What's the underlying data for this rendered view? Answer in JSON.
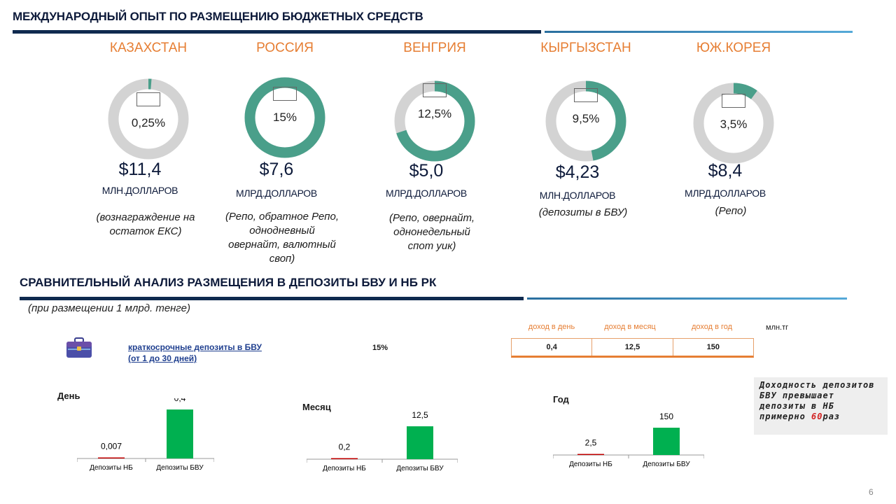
{
  "header": {
    "title": "МЕЖДУНАРОДНЫЙ ОПЫТ ПО РАЗМЕЩЕНИЮ БЮДЖЕТНЫХ СРЕДСТВ"
  },
  "countries": [
    {
      "name": "КАЗАХСТАН",
      "percent_label": "0,25%",
      "share": 0.0025,
      "amount": "$11,4",
      "unit": "МЛН.ДОЛЛАРОВ",
      "note_lines": [
        "(вознаграждение на",
        "остаток ЕКС)"
      ],
      "flag": "kz-flag-icon"
    },
    {
      "name": "РОССИЯ",
      "percent_label": "15%",
      "share": 1.0,
      "amount": "$7,6",
      "unit": "МЛРД.ДОЛЛАРОВ",
      "note_lines": [
        "(Репо, обратное Репо,",
        "однодневный",
        "овернайт, валютный",
        "своп)"
      ],
      "flag": "ru-flag-icon"
    },
    {
      "name": "ВЕНГРИЯ",
      "percent_label": "12,5%",
      "share": 0.7,
      "amount": "$5,0",
      "unit": "МЛРД.ДОЛЛАРОВ",
      "note_lines": [
        "(Репо, овернайт,",
        "однонедельный",
        "спот уик)"
      ],
      "flag": "hu-flag-icon"
    },
    {
      "name": "КЫРГЫЗСТАН",
      "percent_label": "9,5%",
      "share": 0.47,
      "amount": "$4,23",
      "unit": "МЛН.ДОЛЛАРОВ",
      "note_lines": [
        "(депозиты в БВУ)"
      ],
      "flag": "kg-flag-icon"
    },
    {
      "name": "ЮЖ.КОРЕЯ",
      "percent_label": "3,5%",
      "share": 0.1,
      "amount": "$8,4",
      "unit": "МЛРД.ДОЛЛАРОВ",
      "note_lines": [
        "(Репо)"
      ],
      "flag": "kr-flag-icon"
    }
  ],
  "analysis": {
    "title": "СРАВНИТЕЛЬНЫЙ АНАЛИЗ  РАЗМЕЩЕНИЯ В ДЕПОЗИТЫ БВУ И НБ РК",
    "subtitle": "(при размещении 1 млрд. тенге)",
    "deposit_link_line1": "краткосрочные депозиты в БВУ",
    "deposit_link_line2": "(от 1 до 30 дней)",
    "rate": "15%",
    "income_headers": [
      "доход в день",
      "доход в месяц",
      "доход в год"
    ],
    "income_values": [
      "0,4",
      "12,5",
      "150"
    ],
    "unit": "млн.тг",
    "callout_text": "Доходность депозитов БВУ превышает депозиты в НБ примерно",
    "callout_number": "60",
    "callout_suffix": "раз"
  },
  "colors": {
    "donut_fill": "#4a9f8a",
    "donut_track": "#d3d3d3",
    "bar_green": "#00b050",
    "bar_red": "#c00000",
    "accent_orange": "#e67e33"
  },
  "chart_data": [
    {
      "type": "bar",
      "title": "День",
      "categories": [
        "Депозиты НБ",
        "Депозиты БВУ"
      ],
      "values": [
        0.007,
        0.4
      ],
      "labels": [
        "0,007",
        "0,4"
      ]
    },
    {
      "type": "bar",
      "title": "Месяц",
      "categories": [
        "Депозиты НБ",
        "Депозиты БВУ"
      ],
      "values": [
        0.2,
        12.5
      ],
      "labels": [
        "0,2",
        "12,5"
      ]
    },
    {
      "type": "bar",
      "title": "Год",
      "categories": [
        "Депозиты НБ",
        "Депозиты БВУ"
      ],
      "values": [
        2.5,
        150
      ],
      "labels": [
        "2,5",
        "150"
      ]
    }
  ],
  "footer": {
    "page": "6"
  }
}
